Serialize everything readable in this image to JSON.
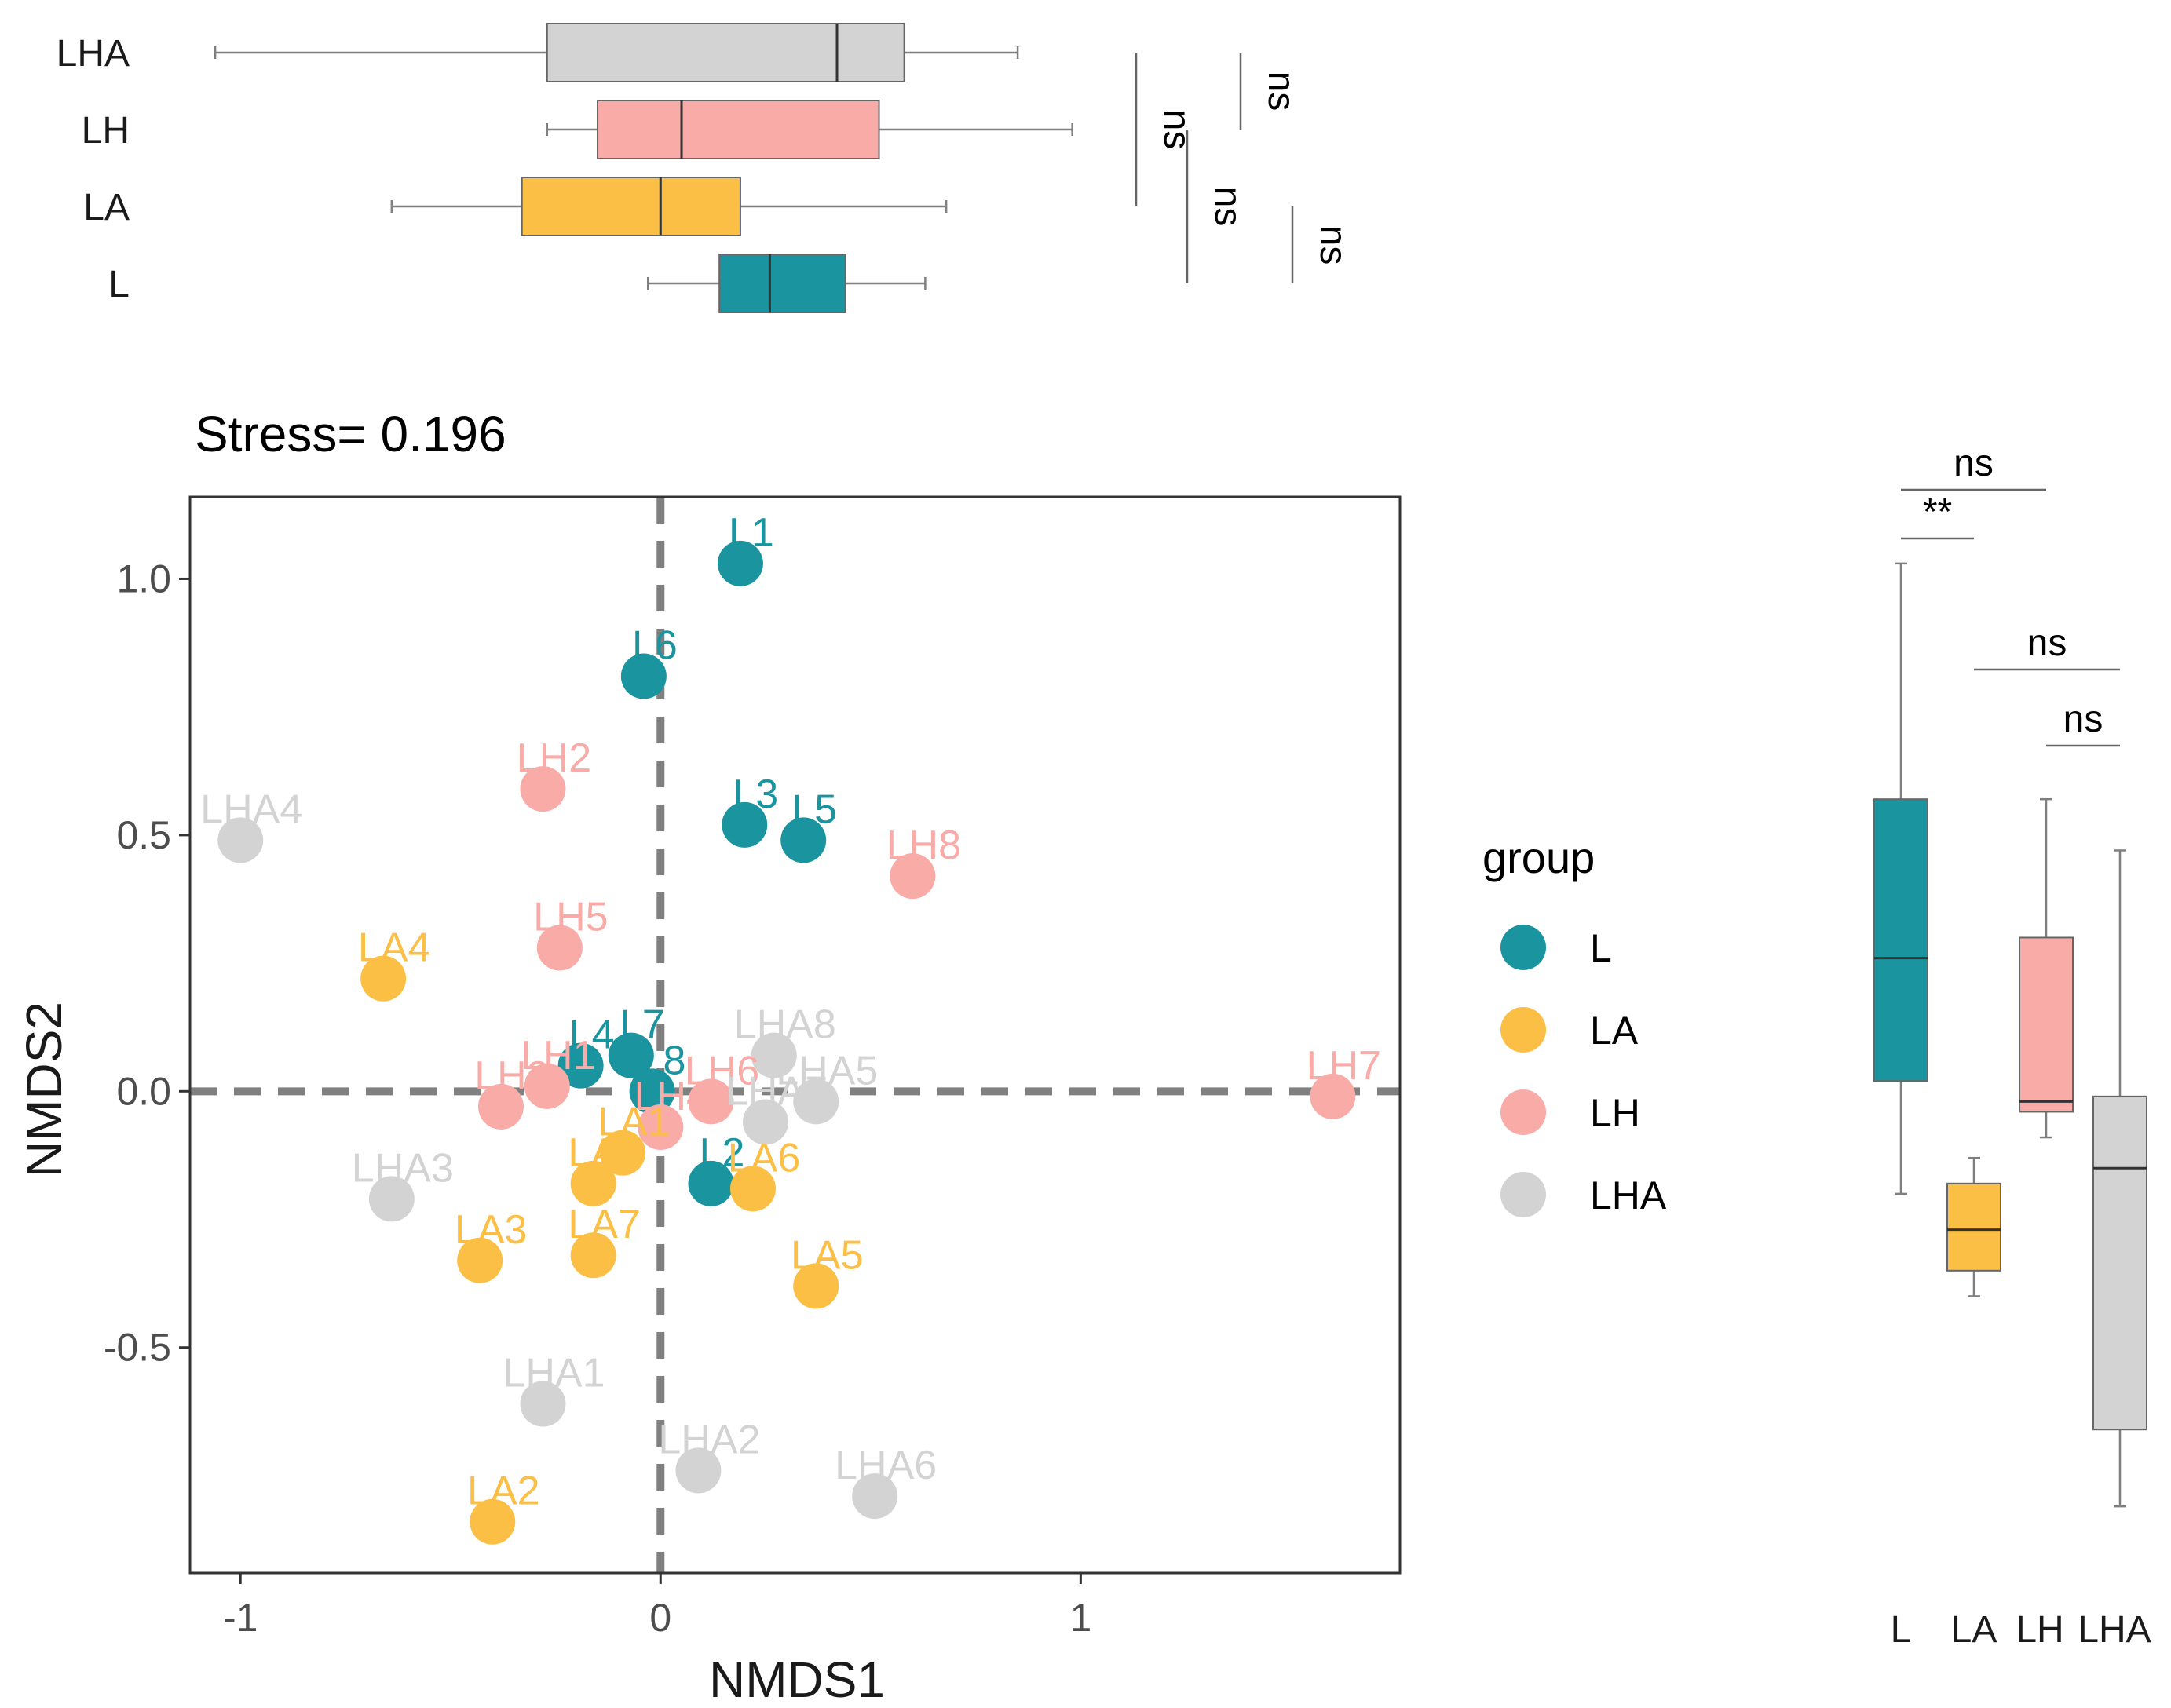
{
  "colors": {
    "L": "#1A959F",
    "LA": "#FCBF45",
    "LH": "#F9ABA8",
    "LHA": "#D3D3D3",
    "ref_line": "#808080",
    "axis": "#333333",
    "whisker": "#7f7f7f"
  },
  "chart_data": [
    {
      "type": "scatter",
      "title": "Stress= 0.196",
      "xlabel": "NMDS1",
      "ylabel": "NMDS2",
      "xlim": [
        -1.12,
        1.76
      ],
      "ylim": [
        -0.94,
        1.16
      ],
      "xticks": [
        -1,
        0,
        1
      ],
      "xtick_labels": [
        "-1",
        "0",
        "1"
      ],
      "yticks": [
        -0.5,
        0.0,
        0.5,
        1.0
      ],
      "ytick_labels": [
        "-0.5",
        "0.0",
        "0.5",
        "1.0"
      ],
      "reference_lines": {
        "x": 0,
        "y": 0,
        "style": "dashed"
      },
      "legend": {
        "title": "group",
        "placement": "right",
        "entries": [
          "L",
          "LA",
          "LH",
          "LHA"
        ]
      },
      "points": [
        {
          "label": "L1",
          "group": "L",
          "x": 0.19,
          "y": 1.03
        },
        {
          "label": "L6",
          "group": "L",
          "x": -0.04,
          "y": 0.81
        },
        {
          "label": "L3",
          "group": "L",
          "x": 0.2,
          "y": 0.52
        },
        {
          "label": "L5",
          "group": "L",
          "x": 0.34,
          "y": 0.49
        },
        {
          "label": "L4",
          "group": "L",
          "x": -0.19,
          "y": 0.05
        },
        {
          "label": "L7",
          "group": "L",
          "x": -0.07,
          "y": 0.07
        },
        {
          "label": "L8",
          "group": "L",
          "x": -0.02,
          "y": 0.0
        },
        {
          "label": "L2",
          "group": "L",
          "x": 0.12,
          "y": -0.18
        },
        {
          "label": "LA4",
          "group": "LA",
          "x": -0.66,
          "y": 0.22
        },
        {
          "label": "LA1",
          "group": "LA",
          "x": -0.09,
          "y": -0.12
        },
        {
          "label": "LA8",
          "group": "LA",
          "x": -0.16,
          "y": -0.18
        },
        {
          "label": "LA6",
          "group": "LA",
          "x": 0.22,
          "y": -0.19
        },
        {
          "label": "LA3",
          "group": "LA",
          "x": -0.43,
          "y": -0.33
        },
        {
          "label": "LA7",
          "group": "LA",
          "x": -0.16,
          "y": -0.32
        },
        {
          "label": "LA5",
          "group": "LA",
          "x": 0.37,
          "y": -0.38
        },
        {
          "label": "LA2",
          "group": "LA",
          "x": -0.4,
          "y": -0.84
        },
        {
          "label": "LH2",
          "group": "LH",
          "x": -0.28,
          "y": 0.59
        },
        {
          "label": "LH8",
          "group": "LH",
          "x": 0.6,
          "y": 0.42
        },
        {
          "label": "LH5",
          "group": "LH",
          "x": -0.24,
          "y": 0.28
        },
        {
          "label": "LH1",
          "group": "LH",
          "x": -0.27,
          "y": 0.01
        },
        {
          "label": "LH3",
          "group": "LH",
          "x": -0.38,
          "y": -0.03
        },
        {
          "label": "LH6",
          "group": "LH",
          "x": 0.12,
          "y": -0.02
        },
        {
          "label": "LH4",
          "group": "LH",
          "x": 0.0,
          "y": -0.07
        },
        {
          "label": "LH7",
          "group": "LH",
          "x": 1.6,
          "y": -0.01
        },
        {
          "label": "LHA4",
          "group": "LHA",
          "x": -1.0,
          "y": 0.49
        },
        {
          "label": "LHA8",
          "group": "LHA",
          "x": 0.27,
          "y": 0.07
        },
        {
          "label": "LHA5",
          "group": "LHA",
          "x": 0.37,
          "y": -0.02
        },
        {
          "label": "LHA7",
          "group": "LHA",
          "x": 0.25,
          "y": -0.06
        },
        {
          "label": "LHA3",
          "group": "LHA",
          "x": -0.64,
          "y": -0.21
        },
        {
          "label": "LHA1",
          "group": "LHA",
          "x": -0.28,
          "y": -0.61
        },
        {
          "label": "LHA2",
          "group": "LHA",
          "x": 0.09,
          "y": -0.74
        },
        {
          "label": "LHA6",
          "group": "LHA",
          "x": 0.51,
          "y": -0.79
        }
      ]
    },
    {
      "type": "boxplot",
      "orientation": "horizontal",
      "axis_variable": "NMDS1",
      "categories": [
        "LHA",
        "LH",
        "LA",
        "L"
      ],
      "boxes": [
        {
          "group": "LHA",
          "min": -1.06,
          "q1": -0.27,
          "median": 0.42,
          "q3": 0.58,
          "max": 0.85
        },
        {
          "group": "LH",
          "min": -0.27,
          "q1": -0.15,
          "median": 0.05,
          "q3": 0.52,
          "max": 0.98
        },
        {
          "group": "LA",
          "min": -0.64,
          "q1": -0.33,
          "median": 0.0,
          "q3": 0.19,
          "max": 0.68
        },
        {
          "group": "L",
          "min": -0.03,
          "q1": 0.14,
          "median": 0.26,
          "q3": 0.44,
          "max": 0.63
        }
      ],
      "significance": [
        {
          "pair": [
            "L",
            "LH"
          ],
          "label": "ns"
        },
        {
          "pair": [
            "LH",
            "LHA"
          ],
          "label": "ns"
        },
        {
          "pair": [
            "L",
            "LA"
          ],
          "label": "ns"
        },
        {
          "pair": [
            "LA",
            "LHA"
          ],
          "label": "ns"
        }
      ]
    },
    {
      "type": "boxplot",
      "orientation": "vertical",
      "axis_variable": "NMDS2",
      "categories": [
        "L",
        "LA",
        "LH",
        "LHA"
      ],
      "boxes": [
        {
          "group": "L",
          "min": -0.2,
          "q1": 0.02,
          "median": 0.26,
          "q3": 0.57,
          "max": 1.03
        },
        {
          "group": "LA",
          "min": -0.4,
          "q1": -0.35,
          "median": -0.27,
          "q3": -0.18,
          "max": -0.13
        },
        {
          "group": "LH",
          "min": -0.09,
          "q1": -0.04,
          "median": -0.02,
          "q3": 0.3,
          "max": 0.57
        },
        {
          "group": "LHA",
          "min": -0.81,
          "q1": -0.66,
          "median": -0.15,
          "q3": -0.01,
          "max": 0.47
        }
      ],
      "significance": [
        {
          "pair": [
            "L",
            "LH"
          ],
          "label": "ns"
        },
        {
          "pair": [
            "L",
            "LA"
          ],
          "label": "**"
        },
        {
          "pair": [
            "LA",
            "LHA"
          ],
          "label": "ns"
        },
        {
          "pair": [
            "LH",
            "LHA"
          ],
          "label": "ns"
        }
      ]
    }
  ]
}
